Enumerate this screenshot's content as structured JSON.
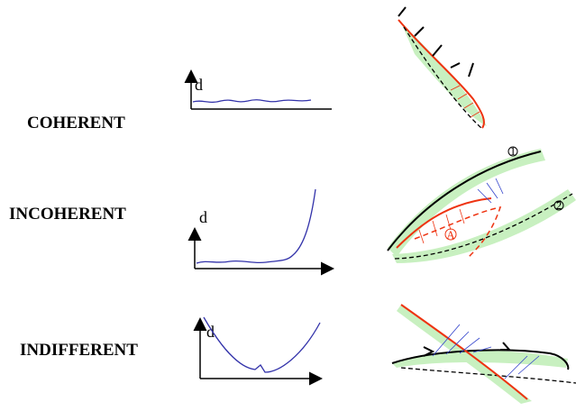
{
  "rows": [
    {
      "label": "COHERENT",
      "axis_label": "d"
    },
    {
      "label": "INCOHERENT",
      "axis_label": "d"
    },
    {
      "label": "INDIFFERENT",
      "axis_label": "d"
    }
  ],
  "markers": [
    "1",
    "2",
    "A"
  ]
}
